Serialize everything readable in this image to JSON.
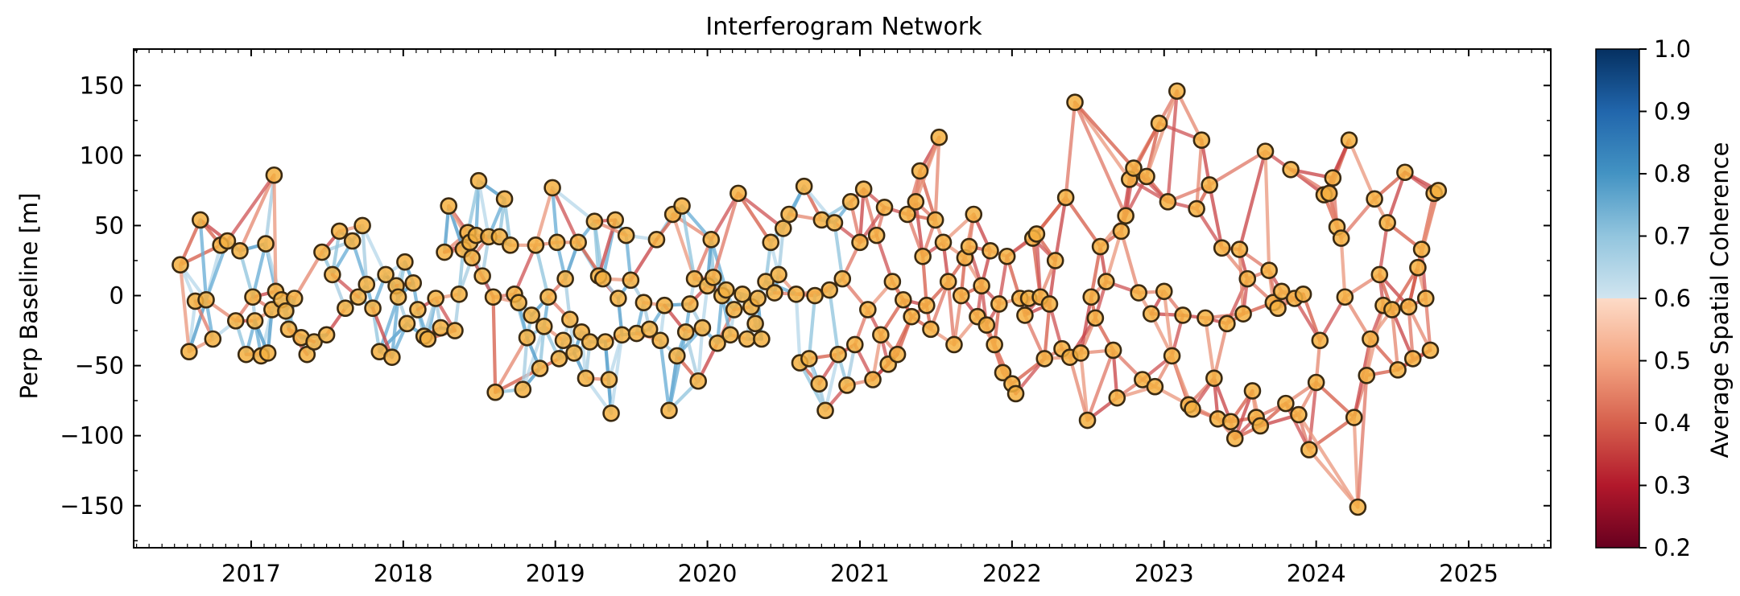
{
  "chart_data": {
    "type": "scatter",
    "title": "Interferogram Network",
    "xlabel": "",
    "ylabel": "Perp Baseline [m]",
    "xlim": [
      "2016-03-25",
      "2025-07-17"
    ],
    "ylim": [
      -180,
      176
    ],
    "xticks": [
      "2017",
      "2018",
      "2019",
      "2020",
      "2021",
      "2022",
      "2023",
      "2024",
      "2025"
    ],
    "yticks": [
      150,
      100,
      50,
      0,
      -50,
      -100,
      -150
    ],
    "grid": false,
    "colorbar": {
      "label": "Average Spatial Coherence",
      "range": [
        0.2,
        1.0
      ],
      "ticks": [
        "1.0",
        "0.9",
        "0.8",
        "0.7",
        "0.6",
        "0.5",
        "0.4",
        "0.3",
        "0.2"
      ],
      "colormap": "RdBu",
      "low_color": "#67001f",
      "mid_color": "#f7f7f7",
      "high_color": "#053061",
      "threshold": 0.7
    },
    "node_style": {
      "fill": "#f5b041",
      "edge": "#3a2a12"
    },
    "nodes": [
      {
        "date": "2016-07-15",
        "bperp": 22
      },
      {
        "date": "2016-08-05",
        "bperp": -40
      },
      {
        "date": "2016-08-20",
        "bperp": -4
      },
      {
        "date": "2016-09-01",
        "bperp": 54
      },
      {
        "date": "2016-09-15",
        "bperp": -3
      },
      {
        "date": "2016-10-01",
        "bperp": -31
      },
      {
        "date": "2016-10-20",
        "bperp": 36
      },
      {
        "date": "2016-11-05",
        "bperp": 39
      },
      {
        "date": "2016-11-25",
        "bperp": -18
      },
      {
        "date": "2016-12-05",
        "bperp": 32
      },
      {
        "date": "2016-12-20",
        "bperp": -42
      },
      {
        "date": "2017-01-05",
        "bperp": -1
      },
      {
        "date": "2017-01-10",
        "bperp": -18
      },
      {
        "date": "2017-01-25",
        "bperp": -43
      },
      {
        "date": "2017-02-05",
        "bperp": 37
      },
      {
        "date": "2017-02-10",
        "bperp": -41
      },
      {
        "date": "2017-02-20",
        "bperp": -10
      },
      {
        "date": "2017-03-01",
        "bperp": 3
      },
      {
        "date": "2017-03-15",
        "bperp": -3
      },
      {
        "date": "2017-03-25",
        "bperp": -11
      },
      {
        "date": "2017-04-01",
        "bperp": -24
      },
      {
        "date": "2017-02-25",
        "bperp": 86
      },
      {
        "date": "2017-04-15",
        "bperp": -2
      },
      {
        "date": "2017-05-01",
        "bperp": -30
      },
      {
        "date": "2017-05-15",
        "bperp": -42
      },
      {
        "date": "2017-06-01",
        "bperp": -33
      },
      {
        "date": "2017-06-20",
        "bperp": 31
      },
      {
        "date": "2017-07-01",
        "bperp": -28
      },
      {
        "date": "2017-07-15",
        "bperp": 15
      },
      {
        "date": "2017-08-01",
        "bperp": 46
      },
      {
        "date": "2017-08-15",
        "bperp": -9
      },
      {
        "date": "2017-09-01",
        "bperp": 39
      },
      {
        "date": "2017-09-15",
        "bperp": -1
      },
      {
        "date": "2017-09-25",
        "bperp": 50
      },
      {
        "date": "2017-10-05",
        "bperp": 8
      },
      {
        "date": "2017-10-20",
        "bperp": -9
      },
      {
        "date": "2017-11-05",
        "bperp": -40
      },
      {
        "date": "2017-11-20",
        "bperp": 15
      },
      {
        "date": "2017-12-05",
        "bperp": -44
      },
      {
        "date": "2017-12-15",
        "bperp": 7
      },
      {
        "date": "2017-12-20",
        "bperp": -1
      },
      {
        "date": "2018-01-05",
        "bperp": 24
      },
      {
        "date": "2018-01-10",
        "bperp": -20
      },
      {
        "date": "2018-01-25",
        "bperp": 9
      },
      {
        "date": "2018-02-05",
        "bperp": -10
      },
      {
        "date": "2018-02-20",
        "bperp": -29
      },
      {
        "date": "2018-03-01",
        "bperp": -31
      },
      {
        "date": "2018-03-20",
        "bperp": -2
      },
      {
        "date": "2018-04-01",
        "bperp": -23
      },
      {
        "date": "2018-04-10",
        "bperp": 31
      },
      {
        "date": "2018-04-20",
        "bperp": 64
      },
      {
        "date": "2018-05-05",
        "bperp": -25
      },
      {
        "date": "2018-05-15",
        "bperp": 1
      },
      {
        "date": "2018-05-25",
        "bperp": 33
      },
      {
        "date": "2018-06-05",
        "bperp": 45
      },
      {
        "date": "2018-06-10",
        "bperp": 38
      },
      {
        "date": "2018-06-15",
        "bperp": 27
      },
      {
        "date": "2018-06-25",
        "bperp": 43
      },
      {
        "date": "2018-07-01",
        "bperp": 82
      },
      {
        "date": "2018-07-10",
        "bperp": 14
      },
      {
        "date": "2018-07-25",
        "bperp": 42
      },
      {
        "date": "2018-08-05",
        "bperp": -1
      },
      {
        "date": "2018-08-10",
        "bperp": -69
      },
      {
        "date": "2018-08-20",
        "bperp": 42
      },
      {
        "date": "2018-09-01",
        "bperp": 69
      },
      {
        "date": "2018-09-15",
        "bperp": 36
      },
      {
        "date": "2018-09-25",
        "bperp": 1
      },
      {
        "date": "2018-10-05",
        "bperp": -5
      },
      {
        "date": "2018-10-15",
        "bperp": -67
      },
      {
        "date": "2018-10-25",
        "bperp": -30
      },
      {
        "date": "2018-11-05",
        "bperp": -14
      },
      {
        "date": "2018-11-15",
        "bperp": 36
      },
      {
        "date": "2018-11-25",
        "bperp": -52
      },
      {
        "date": "2018-12-05",
        "bperp": -22
      },
      {
        "date": "2018-12-15",
        "bperp": -1
      },
      {
        "date": "2018-12-25",
        "bperp": 77
      },
      {
        "date": "2019-01-05",
        "bperp": 38
      },
      {
        "date": "2019-01-10",
        "bperp": -45
      },
      {
        "date": "2019-01-20",
        "bperp": -32
      },
      {
        "date": "2019-01-25",
        "bperp": 12
      },
      {
        "date": "2019-02-05",
        "bperp": -17
      },
      {
        "date": "2019-02-15",
        "bperp": -41
      },
      {
        "date": "2019-02-25",
        "bperp": 38
      },
      {
        "date": "2019-03-05",
        "bperp": -26
      },
      {
        "date": "2019-03-15",
        "bperp": -59
      },
      {
        "date": "2019-03-25",
        "bperp": -33
      },
      {
        "date": "2019-04-05",
        "bperp": 53
      },
      {
        "date": "2019-04-15",
        "bperp": 14
      },
      {
        "date": "2019-04-25",
        "bperp": 12
      },
      {
        "date": "2019-05-01",
        "bperp": -33
      },
      {
        "date": "2019-05-10",
        "bperp": -60
      },
      {
        "date": "2019-05-15",
        "bperp": -84
      },
      {
        "date": "2019-05-25",
        "bperp": 54
      },
      {
        "date": "2019-06-01",
        "bperp": -2
      },
      {
        "date": "2019-06-10",
        "bperp": -28
      },
      {
        "date": "2019-06-20",
        "bperp": 43
      },
      {
        "date": "2019-07-01",
        "bperp": 11
      },
      {
        "date": "2019-07-15",
        "bperp": -27
      },
      {
        "date": "2019-08-01",
        "bperp": -5
      },
      {
        "date": "2019-08-15",
        "bperp": -24
      },
      {
        "date": "2019-09-01",
        "bperp": 40
      },
      {
        "date": "2019-09-10",
        "bperp": -32
      },
      {
        "date": "2019-09-20",
        "bperp": -7
      },
      {
        "date": "2019-10-01",
        "bperp": -82
      },
      {
        "date": "2019-10-10",
        "bperp": 58
      },
      {
        "date": "2019-10-20",
        "bperp": -43
      },
      {
        "date": "2019-11-01",
        "bperp": 64
      },
      {
        "date": "2019-11-10",
        "bperp": -26
      },
      {
        "date": "2019-11-20",
        "bperp": -6
      },
      {
        "date": "2019-12-01",
        "bperp": 12
      },
      {
        "date": "2019-12-10",
        "bperp": -61
      },
      {
        "date": "2019-12-20",
        "bperp": -23
      },
      {
        "date": "2020-01-01",
        "bperp": 7
      },
      {
        "date": "2020-01-10",
        "bperp": 40
      },
      {
        "date": "2020-01-15",
        "bperp": 13
      },
      {
        "date": "2020-01-25",
        "bperp": -34
      },
      {
        "date": "2020-02-05",
        "bperp": 0
      },
      {
        "date": "2020-02-15",
        "bperp": 4
      },
      {
        "date": "2020-02-25",
        "bperp": -28
      },
      {
        "date": "2020-03-05",
        "bperp": -10
      },
      {
        "date": "2020-03-15",
        "bperp": 73
      },
      {
        "date": "2020-03-25",
        "bperp": 1
      },
      {
        "date": "2020-04-05",
        "bperp": -31
      },
      {
        "date": "2020-04-15",
        "bperp": -8
      },
      {
        "date": "2020-04-25",
        "bperp": -20
      },
      {
        "date": "2020-05-01",
        "bperp": -2
      },
      {
        "date": "2020-05-10",
        "bperp": -31
      },
      {
        "date": "2020-05-20",
        "bperp": 10
      },
      {
        "date": "2020-06-01",
        "bperp": 38
      },
      {
        "date": "2020-06-10",
        "bperp": 2
      },
      {
        "date": "2020-06-20",
        "bperp": 15
      },
      {
        "date": "2020-07-01",
        "bperp": 48
      },
      {
        "date": "2020-07-15",
        "bperp": 58
      },
      {
        "date": "2020-08-01",
        "bperp": 1
      },
      {
        "date": "2020-08-10",
        "bperp": -48
      },
      {
        "date": "2020-08-20",
        "bperp": 78
      },
      {
        "date": "2020-09-01",
        "bperp": -45
      },
      {
        "date": "2020-09-15",
        "bperp": 0
      },
      {
        "date": "2020-09-25",
        "bperp": -63
      },
      {
        "date": "2020-10-01",
        "bperp": 54
      },
      {
        "date": "2020-10-10",
        "bperp": -82
      },
      {
        "date": "2020-10-20",
        "bperp": 4
      },
      {
        "date": "2020-11-01",
        "bperp": 52
      },
      {
        "date": "2020-11-10",
        "bperp": -42
      },
      {
        "date": "2020-11-20",
        "bperp": 12
      },
      {
        "date": "2020-12-01",
        "bperp": -64
      },
      {
        "date": "2020-12-10",
        "bperp": 67
      },
      {
        "date": "2020-12-20",
        "bperp": -35
      },
      {
        "date": "2021-01-01",
        "bperp": 38
      },
      {
        "date": "2021-01-10",
        "bperp": 76
      },
      {
        "date": "2021-01-20",
        "bperp": -10
      },
      {
        "date": "2021-02-01",
        "bperp": -60
      },
      {
        "date": "2021-02-10",
        "bperp": 43
      },
      {
        "date": "2021-02-20",
        "bperp": -28
      },
      {
        "date": "2021-03-01",
        "bperp": 63
      },
      {
        "date": "2021-03-10",
        "bperp": -49
      },
      {
        "date": "2021-03-20",
        "bperp": 10
      },
      {
        "date": "2021-04-01",
        "bperp": -42
      },
      {
        "date": "2021-04-15",
        "bperp": -3
      },
      {
        "date": "2021-04-25",
        "bperp": 58
      },
      {
        "date": "2021-05-05",
        "bperp": -15
      },
      {
        "date": "2021-05-15",
        "bperp": 67
      },
      {
        "date": "2021-05-25",
        "bperp": 89
      },
      {
        "date": "2021-06-01",
        "bperp": 28
      },
      {
        "date": "2021-06-10",
        "bperp": -7
      },
      {
        "date": "2021-06-20",
        "bperp": -24
      },
      {
        "date": "2021-07-01",
        "bperp": 54
      },
      {
        "date": "2021-07-10",
        "bperp": 113
      },
      {
        "date": "2021-07-20",
        "bperp": 38
      },
      {
        "date": "2021-08-01",
        "bperp": 10
      },
      {
        "date": "2021-08-15",
        "bperp": -35
      },
      {
        "date": "2021-09-01",
        "bperp": 0
      },
      {
        "date": "2021-09-10",
        "bperp": 27
      },
      {
        "date": "2021-09-20",
        "bperp": 35
      },
      {
        "date": "2021-10-01",
        "bperp": 58
      },
      {
        "date": "2021-10-10",
        "bperp": -15
      },
      {
        "date": "2021-10-20",
        "bperp": 7
      },
      {
        "date": "2021-11-01",
        "bperp": -21
      },
      {
        "date": "2021-11-10",
        "bperp": 32
      },
      {
        "date": "2021-11-20",
        "bperp": -35
      },
      {
        "date": "2021-12-01",
        "bperp": -6
      },
      {
        "date": "2021-12-10",
        "bperp": -55
      },
      {
        "date": "2021-12-20",
        "bperp": 28
      },
      {
        "date": "2022-01-01",
        "bperp": -63
      },
      {
        "date": "2022-01-10",
        "bperp": -70
      },
      {
        "date": "2022-01-20",
        "bperp": -2
      },
      {
        "date": "2022-02-01",
        "bperp": -14
      },
      {
        "date": "2022-02-10",
        "bperp": -2
      },
      {
        "date": "2022-02-20",
        "bperp": 41
      },
      {
        "date": "2022-03-01",
        "bperp": 44
      },
      {
        "date": "2022-03-10",
        "bperp": -1
      },
      {
        "date": "2022-03-20",
        "bperp": -45
      },
      {
        "date": "2022-04-01",
        "bperp": -6
      },
      {
        "date": "2022-04-15",
        "bperp": 25
      },
      {
        "date": "2022-05-01",
        "bperp": -38
      },
      {
        "date": "2022-05-10",
        "bperp": 70
      },
      {
        "date": "2022-05-20",
        "bperp": -44
      },
      {
        "date": "2022-06-01",
        "bperp": 138
      },
      {
        "date": "2022-06-15",
        "bperp": -41
      },
      {
        "date": "2022-07-01",
        "bperp": -89
      },
      {
        "date": "2022-07-10",
        "bperp": -1
      },
      {
        "date": "2022-07-20",
        "bperp": -16
      },
      {
        "date": "2022-08-01",
        "bperp": 35
      },
      {
        "date": "2022-08-15",
        "bperp": 10
      },
      {
        "date": "2022-09-01",
        "bperp": -39
      },
      {
        "date": "2022-09-10",
        "bperp": -73
      },
      {
        "date": "2022-09-20",
        "bperp": 46
      },
      {
        "date": "2022-10-01",
        "bperp": 57
      },
      {
        "date": "2022-10-10",
        "bperp": 83
      },
      {
        "date": "2022-10-20",
        "bperp": 91
      },
      {
        "date": "2022-11-01",
        "bperp": 2
      },
      {
        "date": "2022-11-10",
        "bperp": -60
      },
      {
        "date": "2022-11-20",
        "bperp": 85
      },
      {
        "date": "2022-12-01",
        "bperp": -13
      },
      {
        "date": "2022-12-10",
        "bperp": -65
      },
      {
        "date": "2022-12-20",
        "bperp": 123
      },
      {
        "date": "2023-01-01",
        "bperp": 3
      },
      {
        "date": "2023-01-10",
        "bperp": 67
      },
      {
        "date": "2023-01-20",
        "bperp": -43
      },
      {
        "date": "2023-02-01",
        "bperp": 146
      },
      {
        "date": "2023-02-15",
        "bperp": -14
      },
      {
        "date": "2023-03-01",
        "bperp": -78
      },
      {
        "date": "2023-03-10",
        "bperp": -81
      },
      {
        "date": "2023-03-20",
        "bperp": 62
      },
      {
        "date": "2023-04-01",
        "bperp": 111
      },
      {
        "date": "2023-04-10",
        "bperp": -16
      },
      {
        "date": "2023-04-20",
        "bperp": 79
      },
      {
        "date": "2023-05-01",
        "bperp": -59
      },
      {
        "date": "2023-05-10",
        "bperp": -88
      },
      {
        "date": "2023-05-20",
        "bperp": 34
      },
      {
        "date": "2023-06-01",
        "bperp": -20
      },
      {
        "date": "2023-06-10",
        "bperp": -90
      },
      {
        "date": "2023-06-20",
        "bperp": -102
      },
      {
        "date": "2023-07-01",
        "bperp": 33
      },
      {
        "date": "2023-07-10",
        "bperp": -13
      },
      {
        "date": "2023-07-20",
        "bperp": 12
      },
      {
        "date": "2023-08-01",
        "bperp": -68
      },
      {
        "date": "2023-08-10",
        "bperp": -87
      },
      {
        "date": "2023-08-20",
        "bperp": -93
      },
      {
        "date": "2023-09-01",
        "bperp": 103
      },
      {
        "date": "2023-09-10",
        "bperp": 18
      },
      {
        "date": "2023-09-20",
        "bperp": -5
      },
      {
        "date": "2023-10-01",
        "bperp": -9
      },
      {
        "date": "2023-10-10",
        "bperp": 3
      },
      {
        "date": "2023-10-20",
        "bperp": -77
      },
      {
        "date": "2023-11-01",
        "bperp": 90
      },
      {
        "date": "2023-11-10",
        "bperp": -2
      },
      {
        "date": "2023-11-20",
        "bperp": -85
      },
      {
        "date": "2023-12-01",
        "bperp": 1
      },
      {
        "date": "2023-12-15",
        "bperp": -110
      },
      {
        "date": "2024-01-01",
        "bperp": -62
      },
      {
        "date": "2024-01-10",
        "bperp": -32
      },
      {
        "date": "2024-01-20",
        "bperp": 72
      },
      {
        "date": "2024-02-01",
        "bperp": 73
      },
      {
        "date": "2024-02-10",
        "bperp": 84
      },
      {
        "date": "2024-02-20",
        "bperp": 49
      },
      {
        "date": "2024-03-01",
        "bperp": 41
      },
      {
        "date": "2024-03-10",
        "bperp": -1
      },
      {
        "date": "2024-03-20",
        "bperp": 111
      },
      {
        "date": "2024-04-01",
        "bperp": -87
      },
      {
        "date": "2024-04-10",
        "bperp": -151
      },
      {
        "date": "2024-05-01",
        "bperp": -57
      },
      {
        "date": "2024-05-10",
        "bperp": -31
      },
      {
        "date": "2024-05-20",
        "bperp": 69
      },
      {
        "date": "2024-06-01",
        "bperp": 15
      },
      {
        "date": "2024-06-10",
        "bperp": -7
      },
      {
        "date": "2024-06-20",
        "bperp": 52
      },
      {
        "date": "2024-07-01",
        "bperp": -10
      },
      {
        "date": "2024-07-15",
        "bperp": -53
      },
      {
        "date": "2024-08-01",
        "bperp": 88
      },
      {
        "date": "2024-08-10",
        "bperp": -8
      },
      {
        "date": "2024-08-20",
        "bperp": -45
      },
      {
        "date": "2024-09-01",
        "bperp": 20
      },
      {
        "date": "2024-09-10",
        "bperp": 33
      },
      {
        "date": "2024-09-20",
        "bperp": -2
      },
      {
        "date": "2024-10-01",
        "bperp": -39
      },
      {
        "date": "2024-10-10",
        "bperp": 73
      },
      {
        "date": "2024-10-20",
        "bperp": 75
      }
    ],
    "edge_counts": {
      "per_node_links": 4,
      "coherence_rule": "blue above 0.7 (pre-2021), red below"
    }
  }
}
